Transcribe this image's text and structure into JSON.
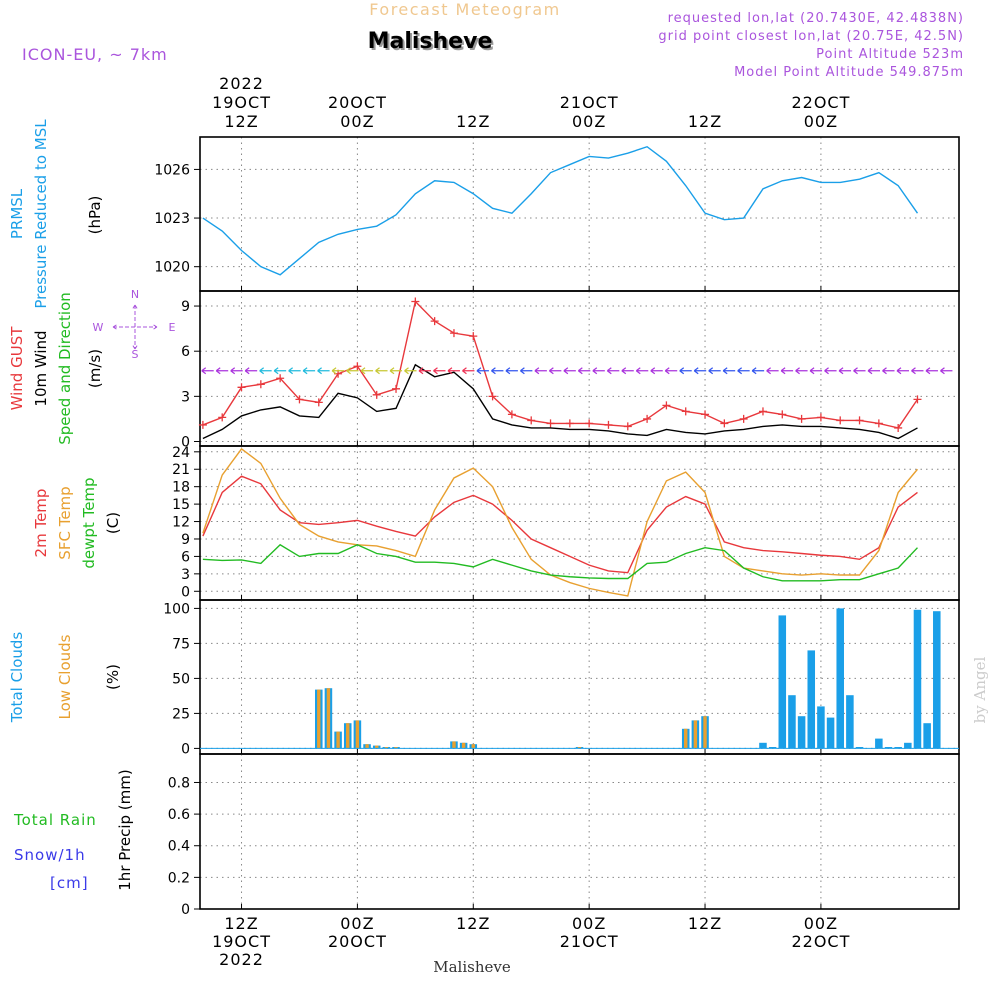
{
  "header": {
    "product": "Forecast Meteogram",
    "location": "Malisheve",
    "model": "ICON-EU, ~ 7km",
    "requested": "requested lon,lat (20.7430E, 42.4838N)",
    "gridpoint": "grid point closest lon,lat (20.75E, 42.5N)",
    "altitude": "Point Altitude 523m",
    "model_altitude": "Model Point Altitude 549.875m"
  },
  "footer": {
    "location": "Malisheve",
    "watermark": "by Angel"
  },
  "time_axis": {
    "top_labels": [
      {
        "t": 0,
        "lines": [
          "2022",
          "19OCT",
          "12Z"
        ]
      },
      {
        "t": 12,
        "lines": [
          "20OCT",
          "00Z"
        ]
      },
      {
        "t": 24,
        "lines": [
          "12Z"
        ]
      },
      {
        "t": 36,
        "lines": [
          "21OCT",
          "00Z"
        ]
      },
      {
        "t": 48,
        "lines": [
          "12Z"
        ]
      },
      {
        "t": 60,
        "lines": [
          "22OCT",
          "00Z"
        ]
      }
    ],
    "bottom_labels": [
      {
        "t": 0,
        "lines": [
          "12Z",
          "19OCT",
          "2022"
        ]
      },
      {
        "t": 12,
        "lines": [
          "00Z",
          "20OCT"
        ]
      },
      {
        "t": 24,
        "lines": [
          "12Z"
        ]
      },
      {
        "t": 36,
        "lines": [
          "00Z",
          "21OCT"
        ]
      },
      {
        "t": 48,
        "lines": [
          "12Z"
        ]
      },
      {
        "t": 60,
        "lines": [
          "00Z",
          "22OCT"
        ]
      }
    ]
  },
  "panels": {
    "pressure": {
      "left_labels": [
        {
          "text": "PRMSL",
          "color": "#1a9fe8"
        },
        {
          "text": "Pressure Reduced to MSL",
          "color": "#1a9fe8"
        }
      ],
      "unit": "(hPa)",
      "ticks": [
        "1020",
        "1023",
        "1026"
      ]
    },
    "wind": {
      "left_labels": [
        {
          "text": "Wind GUST",
          "color": "#e8383c"
        },
        {
          "text": "10m Wind",
          "color": "#000000"
        },
        {
          "text": "Speed and Direction",
          "color": "#22bb22"
        }
      ],
      "unit": "(m/s)",
      "ticks": [
        "0",
        "3",
        "6",
        "9"
      ],
      "compass": {
        "n": "N",
        "s": "S",
        "w": "W",
        "e": "E",
        "color": "#aa55dd"
      }
    },
    "temp": {
      "left_labels": [
        {
          "text": "2m Temp",
          "color": "#e8383c"
        },
        {
          "text": "SFC Temp",
          "color": "#e8a030"
        },
        {
          "text": "dewpt Temp",
          "color": "#22bb22"
        }
      ],
      "unit": "(C)",
      "ticks": [
        "0",
        "3",
        "6",
        "9",
        "12",
        "15",
        "18",
        "21",
        "24"
      ]
    },
    "clouds": {
      "left_labels": [
        {
          "text": "Total Clouds",
          "color": "#1a9fe8"
        },
        {
          "text": "Low Clouds",
          "color": "#e8a030"
        }
      ],
      "unit": "(%)",
      "ticks": [
        "0",
        "25",
        "50",
        "75",
        "100"
      ]
    },
    "precip": {
      "left_labels": [
        {
          "text": "Total Rain",
          "color": "#22bb22"
        },
        {
          "text": "Snow/1h",
          "color": "#3a3ae8"
        },
        {
          "text": "[cm]",
          "color": "#3a3ae8"
        }
      ],
      "unit": "1hr Precip (mm)",
      "ticks": [
        "0",
        "0.2",
        "0.4",
        "0.6",
        "0.8"
      ]
    }
  },
  "chart_data": [
    {
      "type": "line",
      "title": "PRMSL Pressure Reduced to MSL",
      "ylabel": "(hPa)",
      "ylim": [
        1018.5,
        1028
      ],
      "x_hours_from_19OCT_12Z": [
        -4,
        -2,
        0,
        2,
        4,
        6,
        8,
        10,
        12,
        14,
        16,
        18,
        20,
        22,
        24,
        26,
        28,
        30,
        32,
        34,
        36,
        38,
        40,
        42,
        44,
        46,
        48,
        50,
        52,
        54,
        56,
        58,
        60,
        62,
        64,
        66,
        68,
        70
      ],
      "series": [
        {
          "name": "PRMSL",
          "color": "#1a9fe8",
          "values": [
            1023,
            1022.2,
            1021,
            1020,
            1019.5,
            1020.5,
            1021.5,
            1022,
            1022.3,
            1022.5,
            1023.2,
            1024.5,
            1025.3,
            1025.2,
            1024.5,
            1023.6,
            1023.3,
            1024.5,
            1025.8,
            1026.3,
            1026.8,
            1026.7,
            1027,
            1027.4,
            1026.5,
            1025,
            1023.3,
            1022.9,
            1023,
            1024.8,
            1025.3,
            1025.5,
            1025.2,
            1025.2,
            1025.4,
            1025.8,
            1025,
            1023.3
          ]
        }
      ]
    },
    {
      "type": "line",
      "title": "Wind GUST / 10m Wind Speed and Direction",
      "ylabel": "(m/s)",
      "ylim": [
        -0.3,
        10
      ],
      "x_hours_from_19OCT_12Z": [
        -4,
        -2,
        0,
        2,
        4,
        6,
        8,
        10,
        12,
        14,
        16,
        18,
        20,
        22,
        24,
        26,
        28,
        30,
        32,
        34,
        36,
        38,
        40,
        42,
        44,
        46,
        48,
        50,
        52,
        54,
        56,
        58,
        60,
        62,
        64,
        66,
        68,
        70
      ],
      "series": [
        {
          "name": "Wind GUST",
          "color": "#e8383c",
          "values": [
            1.1,
            1.6,
            3.6,
            3.8,
            4.2,
            2.8,
            2.6,
            4.5,
            5.0,
            3.1,
            3.5,
            9.3,
            8.0,
            7.2,
            7.0,
            3.0,
            1.8,
            1.4,
            1.2,
            1.2,
            1.2,
            1.1,
            1.0,
            1.5,
            2.4,
            2.0,
            1.8,
            1.2,
            1.5,
            2.0,
            1.8,
            1.5,
            1.6,
            1.4,
            1.4,
            1.2,
            0.9,
            2.8
          ]
        },
        {
          "name": "10m Wind",
          "color": "#000000",
          "values": [
            0.2,
            0.8,
            1.7,
            2.1,
            2.3,
            1.7,
            1.6,
            3.2,
            2.9,
            2.0,
            2.2,
            5.1,
            4.3,
            4.6,
            3.5,
            1.5,
            1.1,
            0.9,
            0.9,
            0.8,
            0.8,
            0.7,
            0.5,
            0.4,
            0.8,
            0.6,
            0.5,
            0.7,
            0.8,
            1.0,
            1.1,
            1.0,
            1.0,
            0.9,
            0.8,
            0.6,
            0.2,
            0.9
          ]
        }
      ]
    },
    {
      "type": "line",
      "title": "2m Temp / SFC Temp / dewpt Temp",
      "ylabel": "(C)",
      "ylim": [
        -1.5,
        25
      ],
      "x_hours_from_19OCT_12Z": [
        -4,
        -2,
        0,
        2,
        4,
        6,
        8,
        10,
        12,
        14,
        16,
        18,
        20,
        22,
        24,
        26,
        28,
        30,
        32,
        34,
        36,
        38,
        40,
        42,
        44,
        46,
        48,
        50,
        52,
        54,
        56,
        58,
        60,
        62,
        64,
        66,
        68,
        70
      ],
      "series": [
        {
          "name": "2m Temp",
          "color": "#e8383c",
          "values": [
            9.5,
            17,
            19.8,
            18.5,
            14,
            11.8,
            11.5,
            11.8,
            12.2,
            11.2,
            10.3,
            9.5,
            12.8,
            15.3,
            16.5,
            15,
            12.2,
            9,
            7.5,
            6,
            4.5,
            3.5,
            3.2,
            10.5,
            14.5,
            16.3,
            15,
            8.5,
            7.5,
            7,
            6.8,
            6.5,
            6.2,
            6,
            5.5,
            7.5,
            14.5,
            17
          ]
        },
        {
          "name": "SFC Temp",
          "color": "#e8a030",
          "values": [
            10,
            20,
            24.5,
            22,
            16,
            11.5,
            9.5,
            8.5,
            8,
            7.8,
            7,
            6,
            14,
            19.5,
            21.2,
            18,
            11,
            5.5,
            2.8,
            1.5,
            0.5,
            -0.2,
            -0.8,
            12,
            19,
            20.5,
            17,
            6,
            4,
            3.5,
            3,
            2.8,
            3,
            2.8,
            2.8,
            7,
            17,
            21
          ]
        },
        {
          "name": "dewpt Temp",
          "color": "#22bb22",
          "values": [
            5.5,
            5.3,
            5.4,
            4.8,
            8,
            6,
            6.5,
            6.5,
            8,
            6.5,
            6,
            5,
            5,
            4.8,
            4.2,
            5.5,
            4.5,
            3.5,
            2.8,
            2.5,
            2.3,
            2.2,
            2.2,
            4.8,
            5,
            6.5,
            7.5,
            7,
            4,
            2.5,
            1.8,
            1.8,
            1.8,
            2,
            2,
            3,
            4,
            7.5
          ]
        }
      ]
    },
    {
      "type": "bar",
      "title": "Total Clouds / Low Clouds",
      "ylabel": "(%)",
      "ylim": [
        -4,
        106
      ],
      "x_hours_from_19OCT_12Z": [
        8,
        9,
        10,
        11,
        12,
        13,
        14,
        15,
        16,
        22,
        23,
        24,
        35,
        46,
        47,
        48,
        54,
        55,
        56,
        57,
        58,
        59,
        60,
        61,
        62,
        63,
        64,
        66,
        67,
        68,
        69,
        70,
        71,
        72
      ],
      "series": [
        {
          "name": "Total Clouds",
          "color": "#1a9fe8",
          "values": [
            42,
            43,
            12,
            18,
            20,
            3,
            2,
            1,
            1,
            5,
            4,
            3,
            1,
            14,
            20,
            23,
            4,
            1,
            95,
            38,
            23,
            70,
            30,
            22,
            100,
            38,
            1,
            7,
            1,
            1,
            4,
            99,
            18,
            98
          ]
        },
        {
          "name": "Low Clouds",
          "color": "#e8a030",
          "values": [
            42,
            43,
            12,
            18,
            20,
            3,
            2,
            1,
            1,
            5,
            4,
            3,
            1,
            14,
            20,
            23,
            0,
            0,
            0,
            0,
            0,
            0,
            0,
            0,
            0,
            0,
            0,
            0,
            0,
            0,
            0,
            0,
            0,
            0
          ]
        }
      ]
    },
    {
      "type": "bar",
      "title": "1hr Precip (mm)",
      "ylabel": "1hr Precip (mm)",
      "ylim": [
        0,
        0.98
      ],
      "categories": [],
      "series": [
        {
          "name": "Total Rain",
          "color": "#22bb22",
          "values": []
        },
        {
          "name": "Snow/1h [cm]",
          "color": "#3a3ae8",
          "values": []
        }
      ]
    }
  ]
}
